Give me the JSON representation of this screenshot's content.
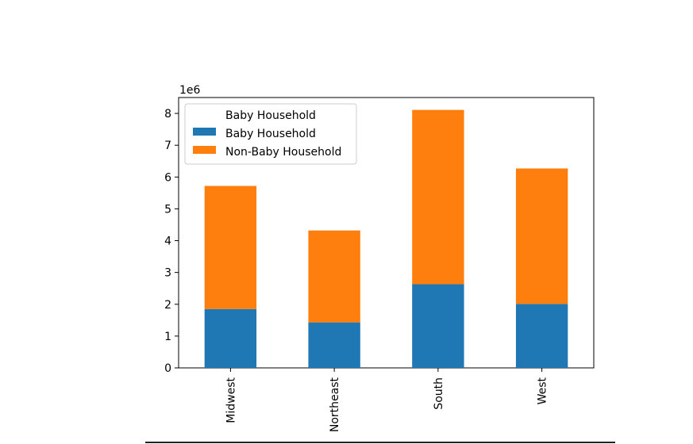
{
  "chart_data": {
    "type": "bar",
    "stacked": true,
    "categories": [
      "Midwest",
      "Northeast",
      "South",
      "West"
    ],
    "series": [
      {
        "name": "Baby Household",
        "color": "#1f77b4",
        "values": [
          1850000,
          1430000,
          2630000,
          2010000
        ]
      },
      {
        "name": "Non-Baby Household",
        "color": "#ff7f0e",
        "values": [
          3870000,
          2890000,
          5480000,
          4260000
        ]
      }
    ],
    "title": "",
    "xlabel": "",
    "ylabel": "",
    "y_offset_label": "1e6",
    "y_scale": 1000000,
    "ylim": [
      0,
      8500000
    ],
    "yticks": [
      0,
      1,
      2,
      3,
      4,
      5,
      6,
      7,
      8
    ],
    "grid": false,
    "legend": {
      "title": "Baby Household",
      "placement": "upper-left"
    }
  }
}
